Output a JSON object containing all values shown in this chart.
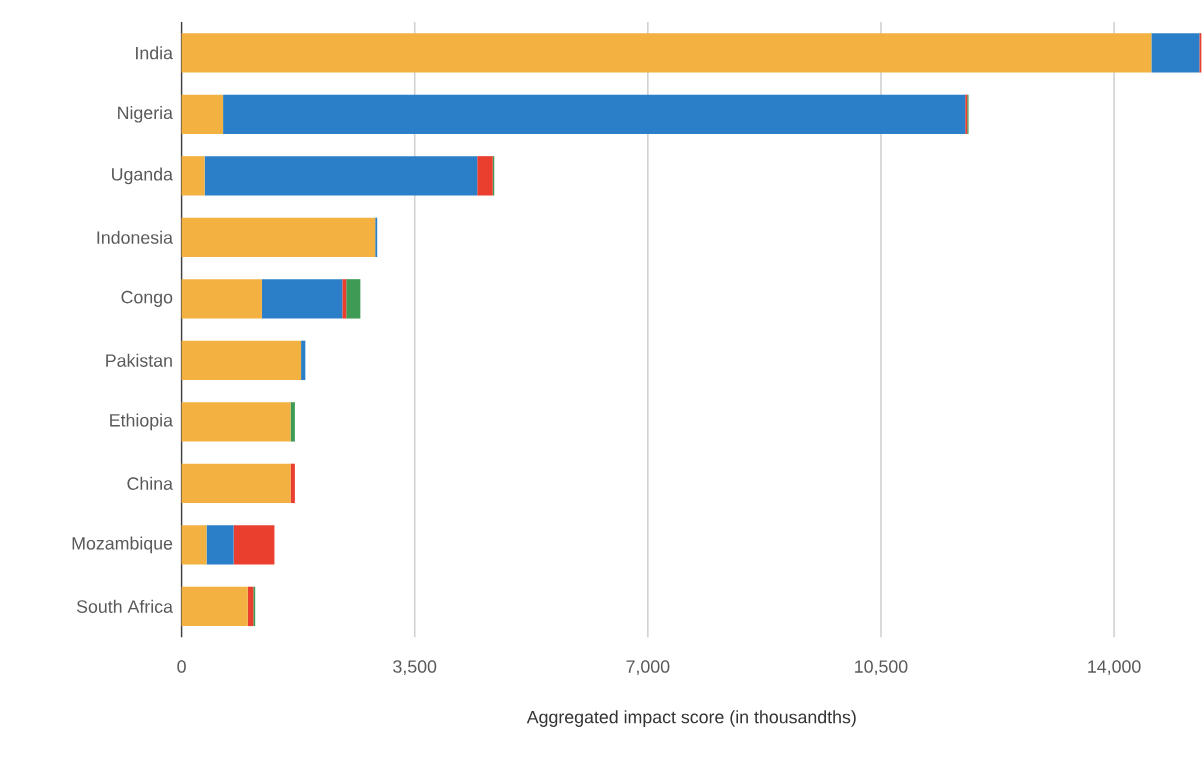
{
  "chart_data": {
    "type": "bar",
    "orientation": "horizontal",
    "stacked": true,
    "xlabel": "Aggregated impact score (in thousandths)",
    "categories": [
      "India",
      "Nigeria",
      "Uganda",
      "Indonesia",
      "Congo",
      "Pakistan",
      "Ethiopia",
      "China",
      "Mozambique",
      "South Africa"
    ],
    "series": [
      {
        "color": "#f3b142",
        "values": [
          14560,
          623,
          346,
          2907,
          1206,
          1794,
          1636,
          1636,
          375,
          994
        ]
      },
      {
        "color": "#2a7fc8",
        "values": [
          720,
          11142,
          4093,
          30,
          1207,
          64,
          null,
          null,
          406,
          null
        ]
      },
      {
        "color": "#ea3e2f",
        "values": [
          30,
          30,
          233,
          null,
          59,
          null,
          null,
          65,
          613,
          83
        ]
      },
      {
        "color": "#3e9b55",
        "values": [
          null,
          20,
          22,
          null,
          212,
          null,
          65,
          null,
          null,
          28
        ]
      }
    ],
    "xlim": [
      0,
      15320
    ],
    "xticks": [
      0,
      {
        "value": 3500,
        "label": "3,500"
      },
      {
        "value": 7000,
        "label": "7,000"
      },
      {
        "value": 10500,
        "label": "10,500"
      },
      {
        "value": 14000,
        "label": "14,000"
      }
    ],
    "grid": "x"
  }
}
